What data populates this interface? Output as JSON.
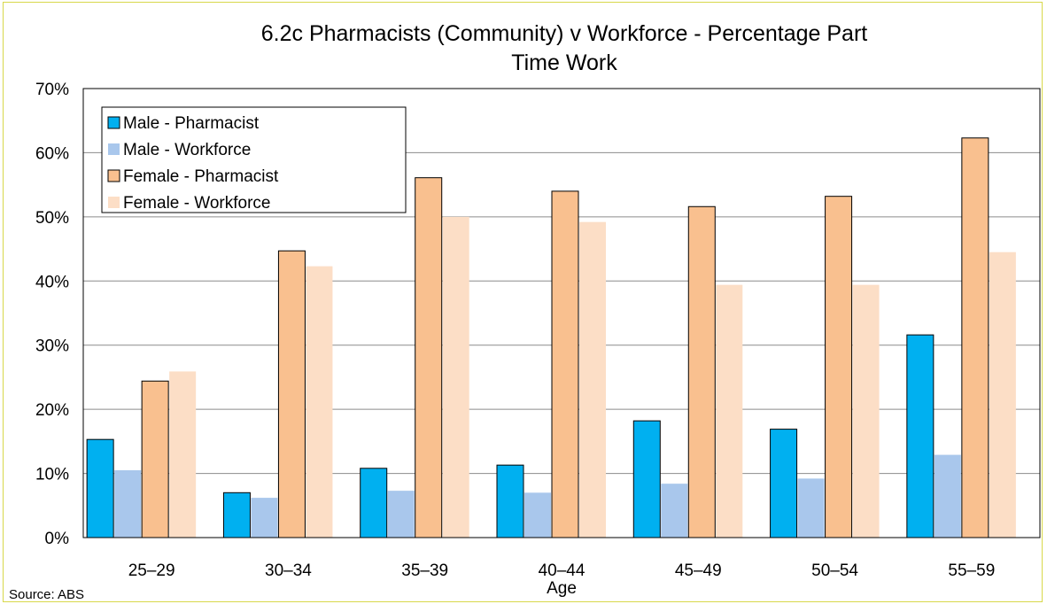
{
  "chart_data": {
    "type": "bar",
    "title_lines": [
      "6.2c Pharmacists (Community) v Workforce - Percentage Part",
      "Time Work"
    ],
    "xlabel": "Age",
    "ylabel": "",
    "ylim": [
      0,
      70
    ],
    "y_ticks": [
      "0%",
      "10%",
      "20%",
      "30%",
      "40%",
      "50%",
      "60%",
      "70%"
    ],
    "grid": true,
    "legend_position": "top-left",
    "categories": [
      "25–29",
      "30–34",
      "35–39",
      "40–44",
      "45–49",
      "50–54",
      "55–59"
    ],
    "series": [
      {
        "name": "Male - Pharmacist",
        "color": "#00b0f0",
        "border": "#000000",
        "values": [
          15.3,
          7.0,
          10.8,
          11.3,
          18.2,
          16.9,
          31.6
        ]
      },
      {
        "name": "Male - Workforce",
        "color": "#a9c7ec",
        "border": "none",
        "values": [
          10.5,
          6.2,
          7.3,
          7.0,
          8.4,
          9.2,
          12.9
        ]
      },
      {
        "name": "Female - Pharmacist",
        "color": "#f9c08f",
        "border": "#000000",
        "values": [
          24.4,
          44.7,
          56.1,
          54.0,
          51.6,
          53.2,
          62.3
        ]
      },
      {
        "name": "Female - Workforce",
        "color": "#fcdec6",
        "border": "none",
        "values": [
          25.9,
          42.3,
          50.0,
          49.2,
          39.4,
          39.4,
          44.5
        ]
      }
    ],
    "source": "Source: ABS"
  }
}
